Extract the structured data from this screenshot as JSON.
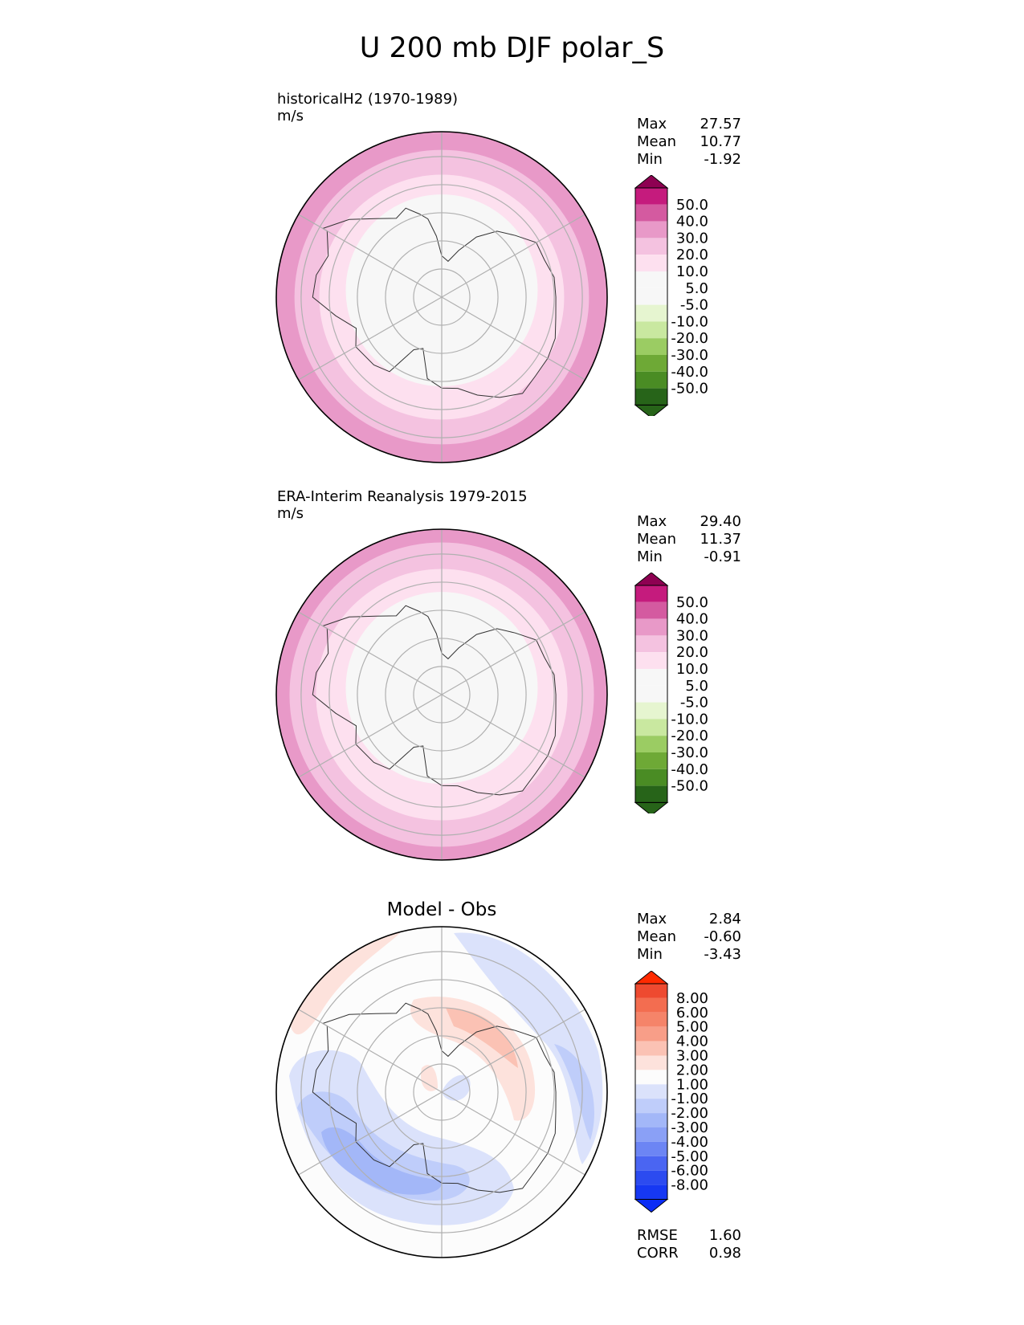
{
  "figure": {
    "title": "U 200 mb DJF polar_S"
  },
  "colors": {
    "pink": [
      "#f7f7f7",
      "#fde0ef",
      "#f4c2e0",
      "#e899c8",
      "#d45aa0",
      "#c51b7d",
      "#8e0152"
    ],
    "green": [
      "#f7f7f7",
      "#e6f5d0",
      "#c9e8a0",
      "#9bcc63",
      "#6ea936",
      "#4a8c24",
      "#276419"
    ],
    "diff_pos": [
      "#fcfcfc",
      "#fde2dc",
      "#fbc2b4",
      "#f89e88",
      "#f58469",
      "#f36d50",
      "#ee4a30",
      "#ff2a00"
    ],
    "diff_neg": [
      "#fcfcfc",
      "#dbe2fb",
      "#bfcdfa",
      "#a3b7f8",
      "#8aa0f6",
      "#6c85f4",
      "#4a65f2",
      "#2c4bf0",
      "#0a2cf6"
    ],
    "continent_fill": "#f5f5f3",
    "grid": "#b0b0b0"
  },
  "chart_data": [
    {
      "type": "polar-contour",
      "panel": "test",
      "label": "historicalH2 (1970-1989)",
      "units": "m/s",
      "stats": {
        "max_label": "Max",
        "max": "27.57",
        "mean_label": "Mean",
        "mean": "10.77",
        "min_label": "Min",
        "min": "-1.92"
      },
      "levels": [
        "50.0",
        "40.0",
        "30.0",
        "20.0",
        "10.0",
        "5.0",
        "-5.0",
        "-10.0",
        "-20.0",
        "-30.0",
        "-40.0",
        "-50.0"
      ],
      "bands": [
        {
          "value": 25,
          "r_frac": 1.0
        },
        {
          "value": 15,
          "r_frac": 0.89
        },
        {
          "value": 7,
          "r_frac": 0.74
        },
        {
          "value": 0,
          "r_frac": 0.58
        }
      ]
    },
    {
      "type": "polar-contour",
      "panel": "reference",
      "label": "ERA-Interim Reanalysis 1979-2015",
      "units": "m/s",
      "stats": {
        "max_label": "Max",
        "max": "29.40",
        "mean_label": "Mean",
        "mean": "11.37",
        "min_label": "Min",
        "min": "-0.91"
      },
      "levels": [
        "50.0",
        "40.0",
        "30.0",
        "20.0",
        "10.0",
        "5.0",
        "-5.0",
        "-10.0",
        "-20.0",
        "-30.0",
        "-40.0",
        "-50.0"
      ],
      "bands": [
        {
          "value": 25,
          "r_frac": 1.0
        },
        {
          "value": 15,
          "r_frac": 0.92
        },
        {
          "value": 7,
          "r_frac": 0.76
        },
        {
          "value": 0,
          "r_frac": 0.58
        }
      ]
    },
    {
      "type": "polar-contour",
      "panel": "difference",
      "title": "Model - Obs",
      "stats": {
        "max_label": "Max",
        "max": "2.84",
        "mean_label": "Mean",
        "mean": "-0.60",
        "min_label": "Min",
        "min": "-3.43"
      },
      "metrics": {
        "rmse_label": "RMSE",
        "rmse": "1.60",
        "corr_label": "CORR",
        "corr": "0.98"
      },
      "levels": [
        "8.00",
        "6.00",
        "5.00",
        "4.00",
        "3.00",
        "2.00",
        "1.00",
        "-1.00",
        "-2.00",
        "-3.00",
        "-4.00",
        "-5.00",
        "-6.00",
        "-8.00"
      ]
    }
  ]
}
